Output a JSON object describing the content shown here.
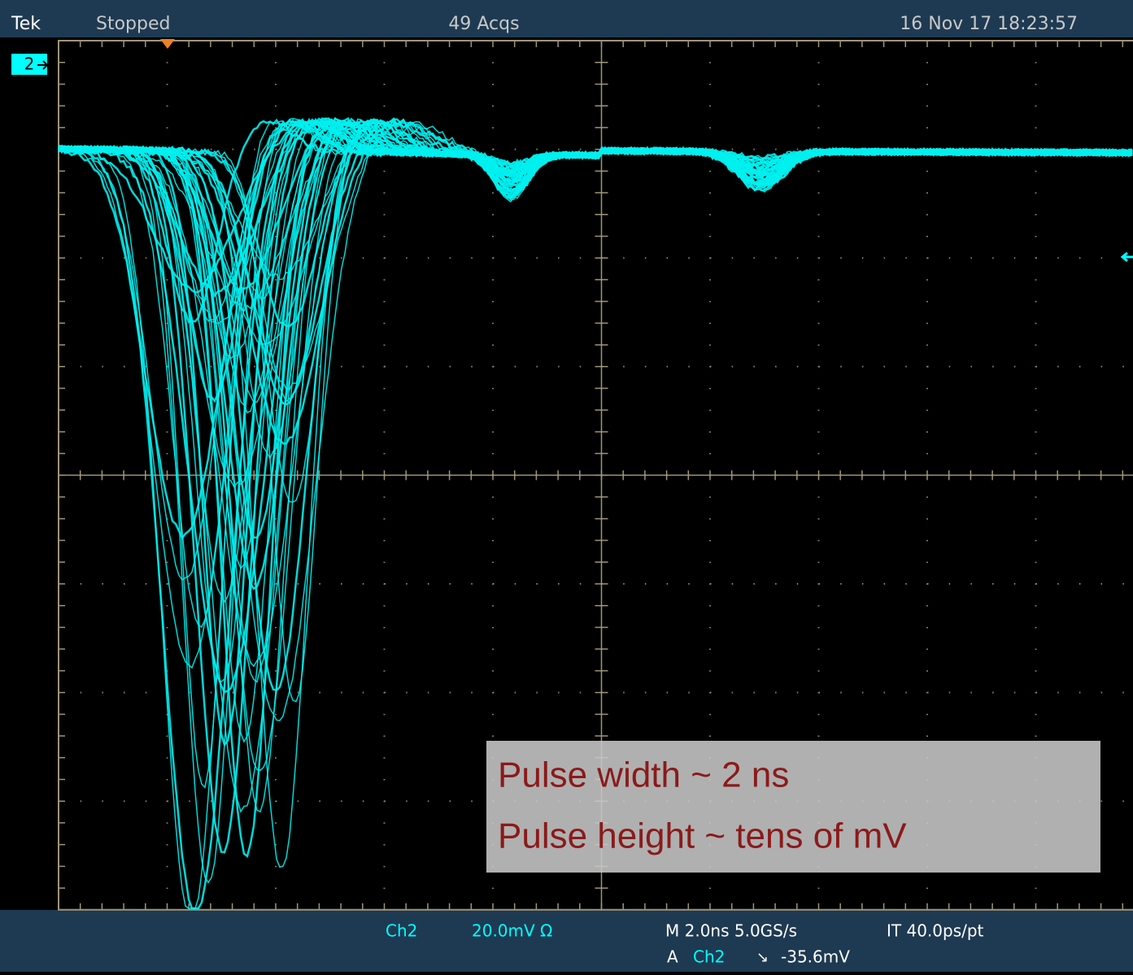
{
  "header": {
    "brand": "Tek",
    "status": "Stopped",
    "acquisitions": "49 Acqs",
    "timestamp": "16 Nov 17 18:23:57"
  },
  "channel_marker": "2",
  "footer": {
    "channel": "Ch2",
    "scale": "20.0mV Ω",
    "timebase": "M 2.0ns 5.0GS/s",
    "interpolation": "IT 40.0ps/pt",
    "trigger_source": "A",
    "trigger_channel": "Ch2",
    "trigger_slope": "↘",
    "trigger_level": "-35.6mV"
  },
  "annotation": {
    "lines": [
      "Pulse width ~ 2 ns",
      "Pulse height ~ tens of mV"
    ]
  }
}
